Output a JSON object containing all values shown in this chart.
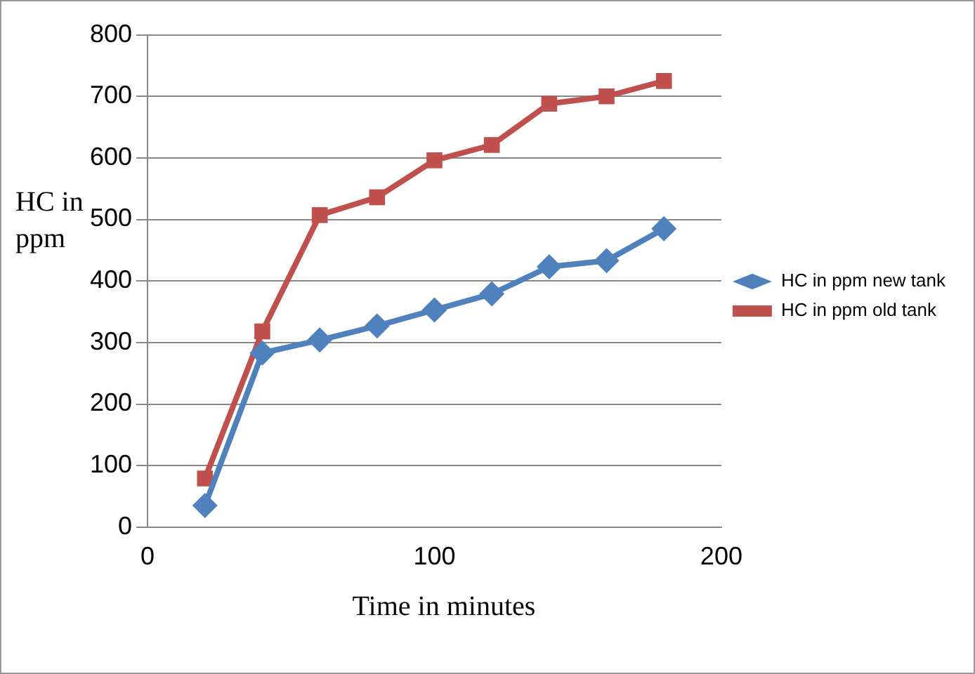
{
  "chart_data": {
    "type": "line",
    "xlabel": "Time in minutes",
    "ylabel": "HC in ppm",
    "xlim": [
      0,
      200
    ],
    "xticks": [
      0,
      100,
      200
    ],
    "ylim": [
      0,
      800
    ],
    "yticks": [
      0,
      100,
      200,
      300,
      400,
      500,
      600,
      700,
      800
    ],
    "grid": "y",
    "legend": "right",
    "series": [
      {
        "name": "HC in ppm new tank",
        "color": "#4f81bd",
        "marker": "diamond",
        "x": [
          20,
          40,
          60,
          80,
          100,
          120,
          140,
          160,
          180
        ],
        "values": [
          35,
          283,
          304,
          327,
          353,
          379,
          423,
          433,
          485
        ]
      },
      {
        "name": "HC in ppm old tank",
        "color": "#c0504d",
        "marker": "square",
        "x": [
          20,
          40,
          60,
          80,
          100,
          120,
          140,
          160,
          180
        ],
        "values": [
          79,
          318,
          507,
          536,
          596,
          621,
          688,
          700,
          725
        ]
      }
    ]
  }
}
